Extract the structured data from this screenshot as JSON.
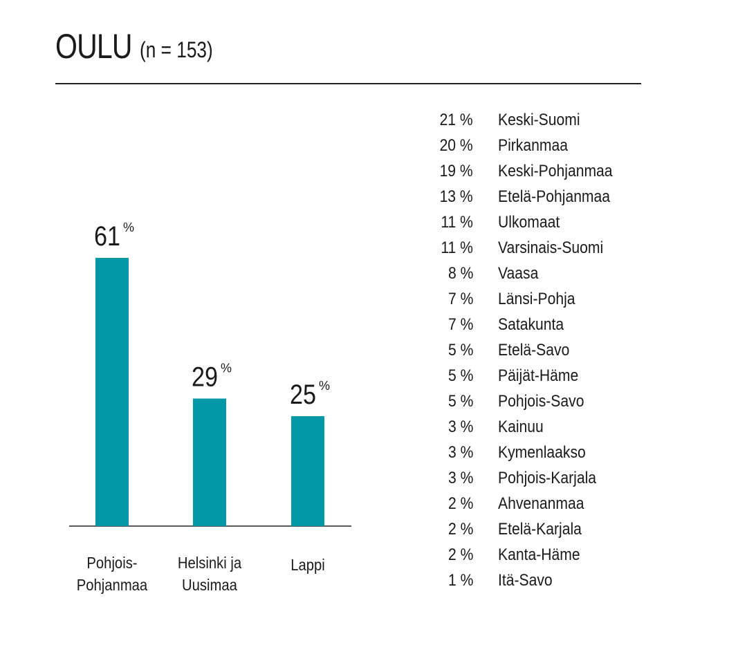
{
  "header": {
    "title": "OULU",
    "subtitle": "(n = 153)"
  },
  "colors": {
    "bar": "#0097a7",
    "text": "#1a1a1a"
  },
  "chart_data": {
    "type": "bar",
    "categories": [
      "Pohjois-\nPohjanmaa",
      "Helsinki ja\nUusimaa",
      "Lappi"
    ],
    "category_lines": [
      [
        "Pohjois-",
        "Pohjanmaa"
      ],
      [
        "Helsinki ja",
        "Uusimaa"
      ],
      [
        "Lappi"
      ]
    ],
    "values": [
      61,
      29,
      25
    ],
    "value_labels": [
      "61",
      "29",
      "25"
    ],
    "unit": "%",
    "ylim": [
      0,
      61
    ],
    "grid": false
  },
  "list": {
    "items": [
      {
        "pct": "21 %",
        "name": "Keski-Suomi"
      },
      {
        "pct": "20 %",
        "name": "Pirkanmaa"
      },
      {
        "pct": "19 %",
        "name": "Keski-Pohjanmaa"
      },
      {
        "pct": "13 %",
        "name": "Etelä-Pohjanmaa"
      },
      {
        "pct": "11 %",
        "name": "Ulkomaat"
      },
      {
        "pct": "11 %",
        "name": "Varsinais-Suomi"
      },
      {
        "pct": "8 %",
        "name": "Vaasa"
      },
      {
        "pct": "7 %",
        "name": "Länsi-Pohja"
      },
      {
        "pct": "7 %",
        "name": "Satakunta"
      },
      {
        "pct": "5 %",
        "name": "Etelä-Savo"
      },
      {
        "pct": "5 %",
        "name": "Päijät-Häme"
      },
      {
        "pct": "5 %",
        "name": "Pohjois-Savo"
      },
      {
        "pct": "3 %",
        "name": "Kainuu"
      },
      {
        "pct": "3 %",
        "name": "Kymenlaakso"
      },
      {
        "pct": "3 %",
        "name": "Pohjois-Karjala"
      },
      {
        "pct": "2 %",
        "name": "Ahvenanmaa"
      },
      {
        "pct": "2 %",
        "name": "Etelä-Karjala"
      },
      {
        "pct": "2 %",
        "name": "Kanta-Häme"
      },
      {
        "pct": "1 %",
        "name": "Itä-Savo"
      }
    ]
  }
}
